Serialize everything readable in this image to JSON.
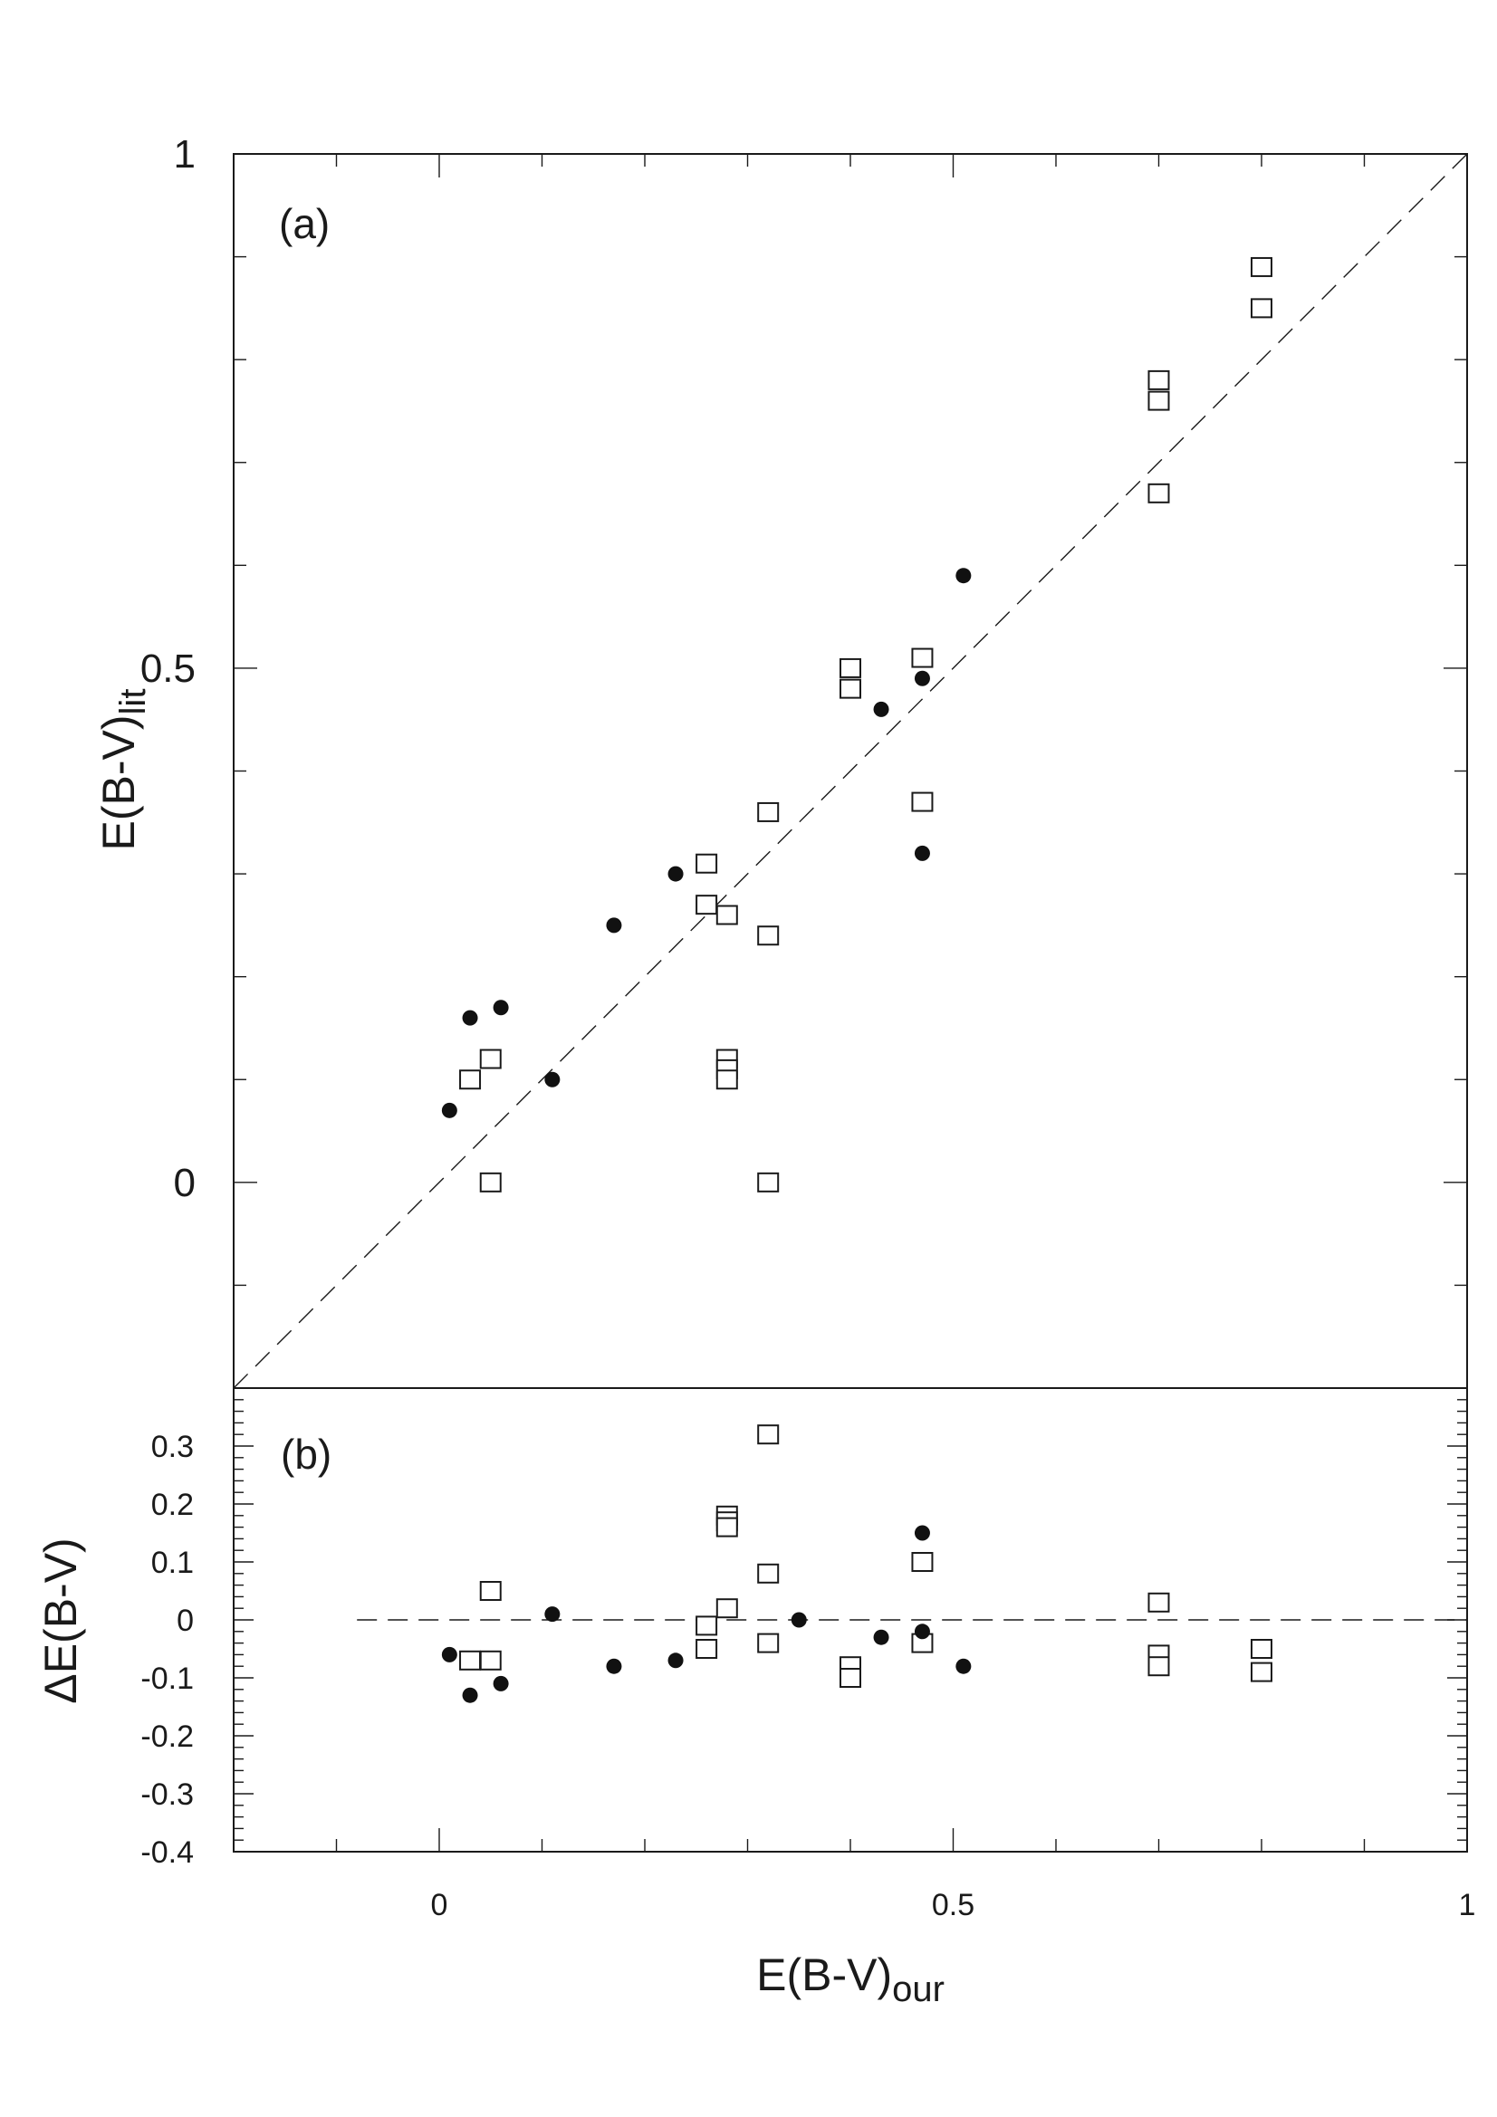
{
  "chart_data": [
    {
      "type": "scatter",
      "panel_label": "(a)",
      "ylabel_main": "E(B-V)",
      "ylabel_sub": "lit",
      "xlim": [
        -0.2,
        1.0
      ],
      "ylim": [
        -0.2,
        1.0
      ],
      "y_ticks": [
        0,
        0.5,
        1
      ],
      "y_tick_labels": [
        "0",
        "0.5",
        "1"
      ],
      "reference_line": "y = x (dashed)",
      "series": [
        {
          "marker": "open-square",
          "points": [
            [
              0.03,
              0.1
            ],
            [
              0.05,
              0.12
            ],
            [
              0.05,
              0.0
            ],
            [
              0.26,
              0.31
            ],
            [
              0.26,
              0.27
            ],
            [
              0.28,
              0.26
            ],
            [
              0.28,
              0.12
            ],
            [
              0.28,
              0.11
            ],
            [
              0.28,
              0.1
            ],
            [
              0.32,
              0.36
            ],
            [
              0.32,
              0.24
            ],
            [
              0.32,
              0.0
            ],
            [
              0.4,
              0.5
            ],
            [
              0.4,
              0.48
            ],
            [
              0.47,
              0.51
            ],
            [
              0.47,
              0.37
            ],
            [
              0.7,
              0.78
            ],
            [
              0.7,
              0.76
            ],
            [
              0.7,
              0.67
            ],
            [
              0.8,
              0.89
            ],
            [
              0.8,
              0.85
            ]
          ]
        },
        {
          "marker": "filled-circle",
          "points": [
            [
              0.01,
              0.07
            ],
            [
              0.03,
              0.16
            ],
            [
              0.06,
              0.17
            ],
            [
              0.11,
              0.1
            ],
            [
              0.17,
              0.25
            ],
            [
              0.23,
              0.3
            ],
            [
              0.43,
              0.46
            ],
            [
              0.47,
              0.49
            ],
            [
              0.47,
              0.32
            ],
            [
              0.51,
              0.59
            ]
          ]
        }
      ]
    },
    {
      "type": "scatter",
      "panel_label": "(b)",
      "ylabel": "ΔE(B-V)",
      "xlabel_main": "E(B-V)",
      "xlabel_sub": "our",
      "xlim": [
        -0.2,
        1.0
      ],
      "ylim": [
        -0.4,
        0.4
      ],
      "x_ticks": [
        0,
        0.5,
        1
      ],
      "x_tick_labels": [
        "0",
        "0.5",
        "1"
      ],
      "y_ticks": [
        0.3,
        0.2,
        0.1,
        0,
        -0.1,
        -0.2,
        -0.3,
        -0.4
      ],
      "y_tick_labels": [
        "0.3",
        "0.2",
        "0.1",
        "0",
        "-0.1",
        "-0.2",
        "-0.3",
        "-0.4"
      ],
      "reference_line": "y = 0 (dashed)",
      "series": [
        {
          "marker": "open-square",
          "points": [
            [
              0.03,
              -0.07
            ],
            [
              0.05,
              -0.07
            ],
            [
              0.05,
              0.05
            ],
            [
              0.26,
              -0.01
            ],
            [
              0.26,
              -0.05
            ],
            [
              0.28,
              0.18
            ],
            [
              0.28,
              0.17
            ],
            [
              0.28,
              0.16
            ],
            [
              0.28,
              0.02
            ],
            [
              0.32,
              0.32
            ],
            [
              0.32,
              0.08
            ],
            [
              0.32,
              -0.04
            ],
            [
              0.4,
              -0.08
            ],
            [
              0.4,
              -0.1
            ],
            [
              0.47,
              0.1
            ],
            [
              0.47,
              -0.04
            ],
            [
              0.7,
              0.03
            ],
            [
              0.7,
              -0.06
            ],
            [
              0.7,
              -0.08
            ],
            [
              0.8,
              -0.05
            ],
            [
              0.8,
              -0.09
            ]
          ]
        },
        {
          "marker": "filled-circle",
          "points": [
            [
              0.01,
              -0.06
            ],
            [
              0.03,
              -0.13
            ],
            [
              0.06,
              -0.11
            ],
            [
              0.11,
              0.01
            ],
            [
              0.17,
              -0.08
            ],
            [
              0.23,
              -0.07
            ],
            [
              0.35,
              0.0
            ],
            [
              0.43,
              -0.03
            ],
            [
              0.47,
              0.15
            ],
            [
              0.47,
              -0.02
            ],
            [
              0.51,
              -0.08
            ]
          ]
        }
      ]
    }
  ]
}
